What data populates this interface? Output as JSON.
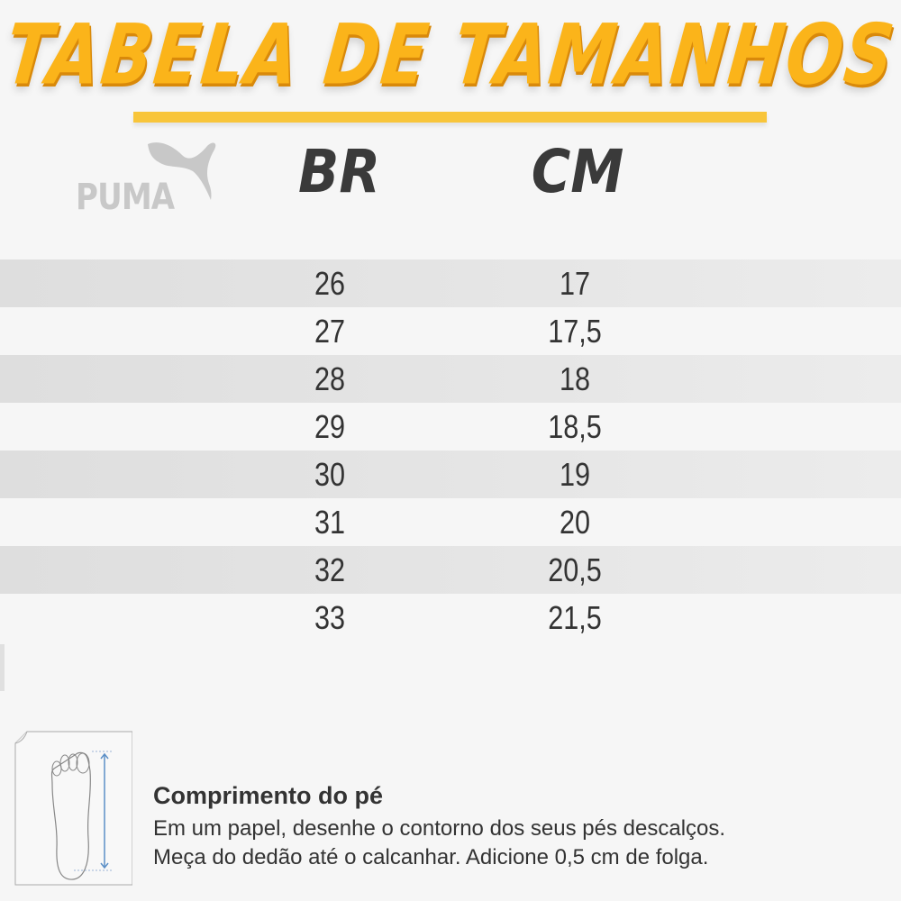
{
  "title": "TABELA DE TAMANHOS",
  "brand": "PUMA",
  "headers": {
    "br": "BR",
    "cm": "CM"
  },
  "rows": [
    {
      "br": "26",
      "cm": "17"
    },
    {
      "br": "27",
      "cm": "17,5"
    },
    {
      "br": "28",
      "cm": "18"
    },
    {
      "br": "29",
      "cm": "18,5"
    },
    {
      "br": "30",
      "cm": "19"
    },
    {
      "br": "31",
      "cm": "20"
    },
    {
      "br": "32",
      "cm": "20,5"
    },
    {
      "br": "33",
      "cm": "21,5"
    }
  ],
  "footer": {
    "title": "Comprimento do pé",
    "line1": "Em um papel, desenhe o contorno dos seus pés descalços.",
    "line2": "Meça do dedão até o calcanhar. Adicione 0,5 cm de folga."
  },
  "colors": {
    "title": "#fbb41a",
    "header": "#3a3a3a",
    "stripe": "#e2e2e2",
    "arrow": "#5b8fc7"
  }
}
